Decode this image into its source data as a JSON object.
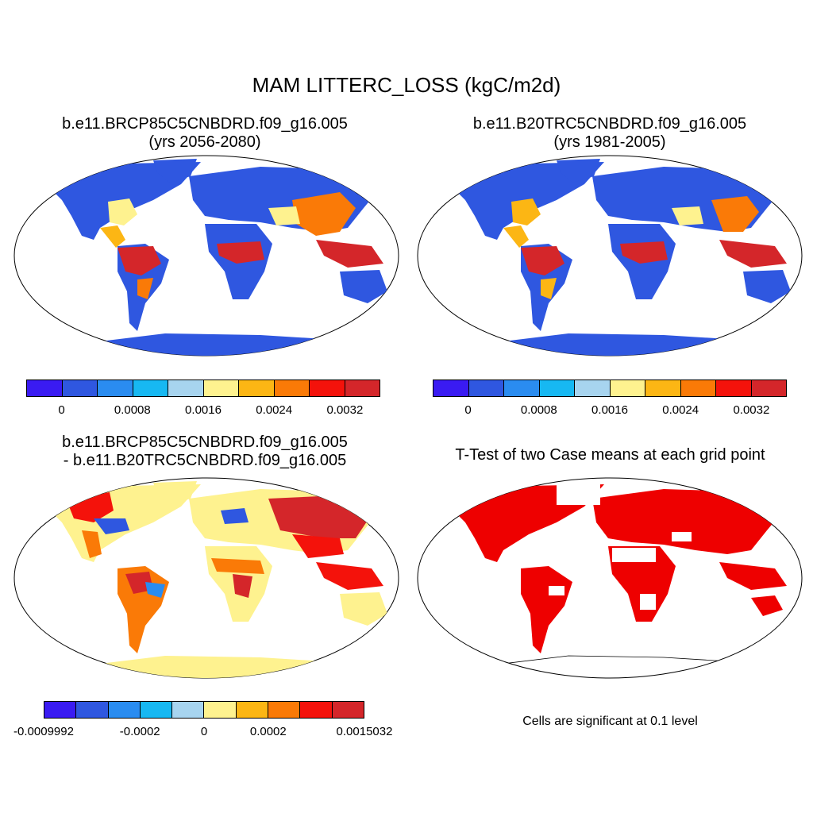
{
  "main_title": "MAM LITTERC_LOSS (kgC/m2d)",
  "panels": {
    "p1": {
      "line1": "b.e11.BRCP85C5CNBDRD.f09_g16.005",
      "line2": "(yrs 2056-2080)"
    },
    "p2": {
      "line1": "b.e11.B20TRC5CNBDRD.f09_g16.005",
      "line2": "(yrs 1981-2005)"
    },
    "p3": {
      "line1": "b.e11.BRCP85C5CNBDRD.f09_g16.005",
      "line2": "- b.e11.B20TRC5CNBDRD.f09_g16.005"
    },
    "p4": {
      "line1": "T-Test of two Case means at each grid point"
    }
  },
  "colorbars": {
    "colors": [
      "#3a1bf2",
      "#2f57e0",
      "#2a8cf0",
      "#17b8f2",
      "#a7d4ef",
      "#fef28f",
      "#fcb614",
      "#fa7a07",
      "#f4120b",
      "#d4262a"
    ],
    "abs_ticks": [
      "0",
      "0.0008",
      "0.0016",
      "0.0024",
      "0.0032"
    ],
    "diff_ticks": [
      "-0.0009992",
      "-0.0002",
      "0",
      "0.0002",
      "0.0015032"
    ]
  },
  "significance_note": "Cells are significant at 0.1 level",
  "map_colors": {
    "ocean": "#ffffff",
    "sig_fill": "#ee0000",
    "diff_base": "#fef28f"
  }
}
